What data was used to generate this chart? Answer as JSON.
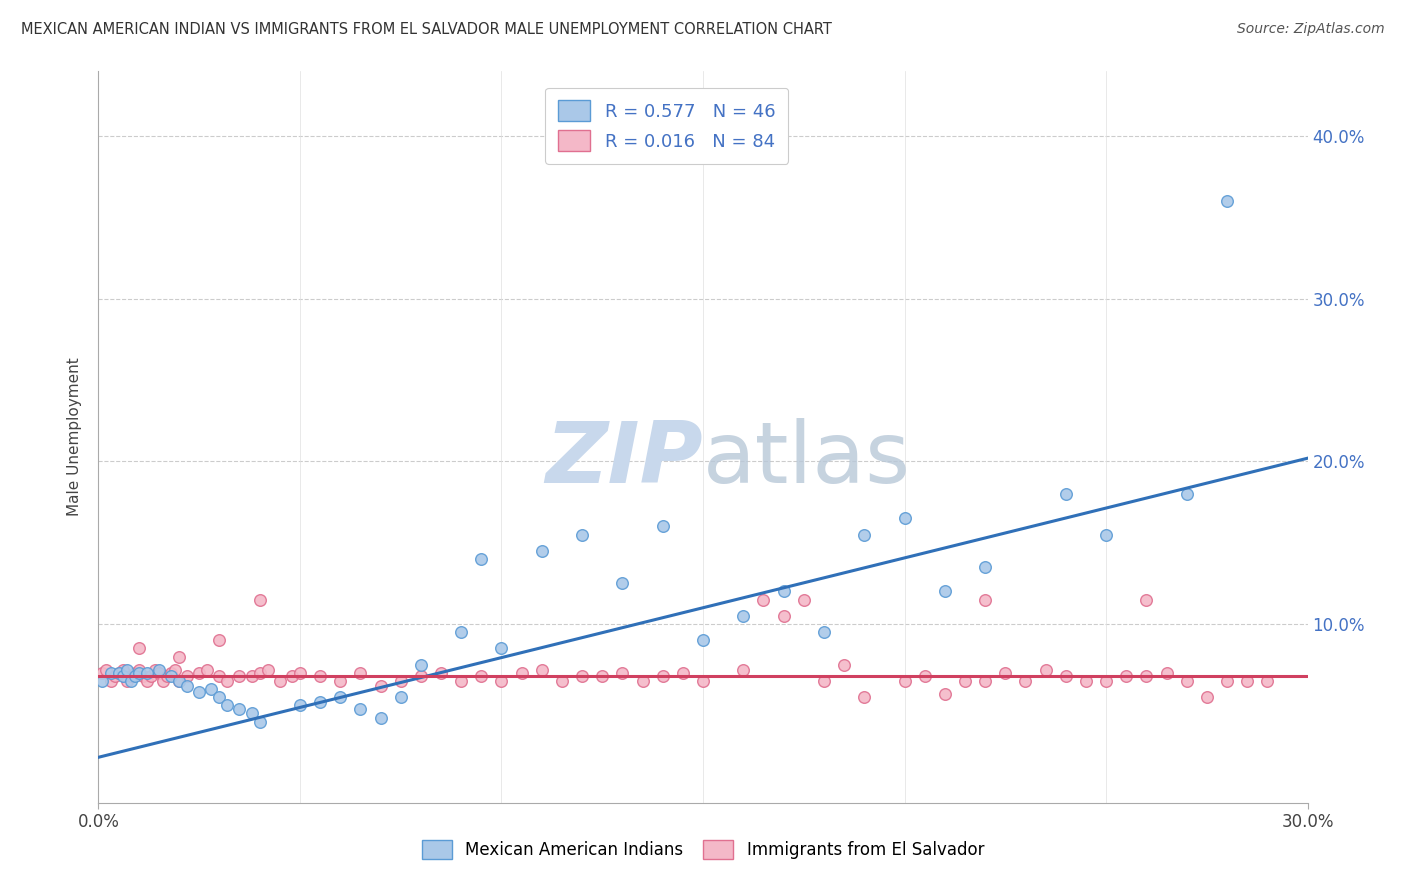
{
  "title": "MEXICAN AMERICAN INDIAN VS IMMIGRANTS FROM EL SALVADOR MALE UNEMPLOYMENT CORRELATION CHART",
  "source": "Source: ZipAtlas.com",
  "ylabel": "Male Unemployment",
  "ytick_vals": [
    0.0,
    0.1,
    0.2,
    0.3,
    0.4
  ],
  "ytick_labels": [
    "",
    "10.0%",
    "20.0%",
    "30.0%",
    "40.0%"
  ],
  "xlim": [
    0.0,
    0.3
  ],
  "ylim": [
    -0.01,
    0.44
  ],
  "legend_r1": "R = 0.577",
  "legend_n1": "N = 46",
  "legend_r2": "R = 0.016",
  "legend_n2": "N = 84",
  "blue_color": "#aac8e8",
  "blue_edge": "#5b9bd5",
  "pink_color": "#f4b8c8",
  "pink_edge": "#e07090",
  "line_blue": "#3070b8",
  "line_pink": "#d04060",
  "watermark_color": "#c8d8ec",
  "blue_line_x0": 0.0,
  "blue_line_y0": 0.018,
  "blue_line_x1": 0.3,
  "blue_line_y1": 0.202,
  "pink_line_x0": 0.0,
  "pink_line_y0": 0.068,
  "pink_line_x1": 0.3,
  "pink_line_y1": 0.068,
  "blue_x": [
    0.001,
    0.003,
    0.005,
    0.006,
    0.007,
    0.008,
    0.009,
    0.01,
    0.012,
    0.015,
    0.018,
    0.02,
    0.022,
    0.025,
    0.028,
    0.03,
    0.032,
    0.035,
    0.038,
    0.04,
    0.05,
    0.055,
    0.06,
    0.065,
    0.07,
    0.075,
    0.08,
    0.09,
    0.095,
    0.1,
    0.11,
    0.12,
    0.13,
    0.14,
    0.15,
    0.16,
    0.17,
    0.18,
    0.19,
    0.2,
    0.21,
    0.22,
    0.24,
    0.25,
    0.27,
    0.28
  ],
  "blue_y": [
    0.065,
    0.07,
    0.07,
    0.068,
    0.072,
    0.065,
    0.068,
    0.07,
    0.07,
    0.072,
    0.068,
    0.065,
    0.062,
    0.058,
    0.06,
    0.055,
    0.05,
    0.048,
    0.045,
    0.04,
    0.05,
    0.052,
    0.055,
    0.048,
    0.042,
    0.055,
    0.075,
    0.095,
    0.14,
    0.085,
    0.145,
    0.155,
    0.125,
    0.16,
    0.09,
    0.105,
    0.12,
    0.095,
    0.155,
    0.165,
    0.12,
    0.135,
    0.18,
    0.155,
    0.18,
    0.36
  ],
  "pink_x": [
    0.001,
    0.002,
    0.003,
    0.004,
    0.005,
    0.006,
    0.007,
    0.008,
    0.009,
    0.01,
    0.011,
    0.012,
    0.013,
    0.014,
    0.015,
    0.016,
    0.017,
    0.018,
    0.019,
    0.02,
    0.022,
    0.025,
    0.027,
    0.03,
    0.032,
    0.035,
    0.038,
    0.04,
    0.042,
    0.045,
    0.048,
    0.05,
    0.055,
    0.06,
    0.065,
    0.07,
    0.075,
    0.08,
    0.085,
    0.09,
    0.095,
    0.1,
    0.105,
    0.11,
    0.115,
    0.12,
    0.125,
    0.13,
    0.135,
    0.14,
    0.145,
    0.15,
    0.16,
    0.165,
    0.17,
    0.175,
    0.18,
    0.185,
    0.19,
    0.2,
    0.205,
    0.21,
    0.215,
    0.22,
    0.225,
    0.23,
    0.235,
    0.24,
    0.245,
    0.25,
    0.255,
    0.26,
    0.265,
    0.27,
    0.275,
    0.28,
    0.285,
    0.29,
    0.01,
    0.02,
    0.03,
    0.04,
    0.22,
    0.26
  ],
  "pink_y": [
    0.07,
    0.072,
    0.065,
    0.068,
    0.07,
    0.072,
    0.065,
    0.068,
    0.07,
    0.072,
    0.068,
    0.065,
    0.068,
    0.072,
    0.07,
    0.065,
    0.068,
    0.07,
    0.072,
    0.065,
    0.068,
    0.07,
    0.072,
    0.068,
    0.065,
    0.068,
    0.068,
    0.07,
    0.072,
    0.065,
    0.068,
    0.07,
    0.068,
    0.065,
    0.07,
    0.062,
    0.065,
    0.068,
    0.07,
    0.065,
    0.068,
    0.065,
    0.07,
    0.072,
    0.065,
    0.068,
    0.068,
    0.07,
    0.065,
    0.068,
    0.07,
    0.065,
    0.072,
    0.115,
    0.105,
    0.115,
    0.065,
    0.075,
    0.055,
    0.065,
    0.068,
    0.057,
    0.065,
    0.065,
    0.07,
    0.065,
    0.072,
    0.068,
    0.065,
    0.065,
    0.068,
    0.068,
    0.07,
    0.065,
    0.055,
    0.065,
    0.065,
    0.065,
    0.085,
    0.08,
    0.09,
    0.115,
    0.115,
    0.115
  ]
}
